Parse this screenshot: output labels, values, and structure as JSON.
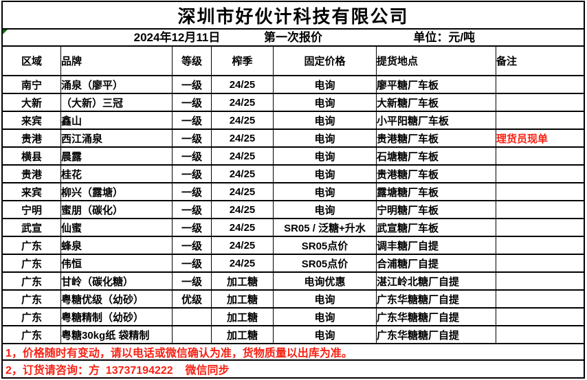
{
  "company": {
    "title": "深圳市好伙计科技有限公司"
  },
  "subheader": {
    "date": "2024年12月11日",
    "round": "第一次报价",
    "unit": "单位：元/吨"
  },
  "table": {
    "columns": [
      {
        "key": "region",
        "label": "区域"
      },
      {
        "key": "brand",
        "label": "品牌"
      },
      {
        "key": "grade",
        "label": "等级"
      },
      {
        "key": "season",
        "label": "榨季"
      },
      {
        "key": "price",
        "label": "固定价格"
      },
      {
        "key": "pickup",
        "label": "提货地点"
      },
      {
        "key": "note",
        "label": "备注"
      }
    ],
    "rows": [
      {
        "region": "南宁",
        "brand": "涌泉（廖平）",
        "grade": "一级",
        "season": "24/25",
        "price": "电询",
        "pickup": "廖平糖厂车板",
        "note": ""
      },
      {
        "region": "大新",
        "brand": "（大新）三冠",
        "grade": "一级",
        "season": "24/25",
        "price": "电询",
        "pickup": "大新糖厂车板",
        "note": ""
      },
      {
        "region": "来宾",
        "brand": "鑫山",
        "grade": "一级",
        "season": "24/25",
        "price": "电询",
        "pickup": "小平阳糖厂车板",
        "note": ""
      },
      {
        "region": "贵港",
        "brand": "西江涌泉",
        "grade": "一级",
        "season": "24/25",
        "price": "电询",
        "pickup": "贵港糖厂车板",
        "note": "理货员现单"
      },
      {
        "region": "横县",
        "brand": "晨露",
        "grade": "一级",
        "season": "24/25",
        "price": "电询",
        "pickup": "石塘糖厂车板",
        "note": ""
      },
      {
        "region": "贵港",
        "brand": "桂花",
        "grade": "一级",
        "season": "24/25",
        "price": "电询",
        "pickup": "贵港糖厂车板",
        "note": ""
      },
      {
        "region": "来宾",
        "brand": "柳兴（露塘）",
        "grade": "一级",
        "season": "24/25",
        "price": "电询",
        "pickup": "露塘糖厂车板",
        "note": ""
      },
      {
        "region": "宁明",
        "brand": "蜜朋（碳化）",
        "grade": "一级",
        "season": "24/25",
        "price": "电询",
        "pickup": "宁明糖厂车板",
        "note": ""
      },
      {
        "region": "武宣",
        "brand": "仙蜜",
        "grade": "一级",
        "season": "24/25",
        "price": "SR05 / 泛糖+升水",
        "pickup": "武宣糖厂车板",
        "note": ""
      },
      {
        "region": "广东",
        "brand": "蜂泉",
        "grade": "一级",
        "season": "24/25",
        "price": "SR05点价",
        "pickup": "调丰糖厂自提",
        "note": ""
      },
      {
        "region": "广东",
        "brand": "伟恒",
        "grade": "一级",
        "season": "24/25",
        "price": "SR05点价",
        "pickup": "合浦糖厂自提",
        "note": ""
      },
      {
        "region": "广东",
        "brand": "甘岭（碳化糖）",
        "grade": "一级",
        "season": "加工糖",
        "price": "电询优惠",
        "pickup": "湛江岭北糖厂自提",
        "note": ""
      },
      {
        "region": "广东",
        "brand": "粤糖优级（幼砂）",
        "grade": "优级",
        "season": "加工糖",
        "price": "电询",
        "pickup": "广东华糖糖厂自提",
        "note": ""
      },
      {
        "region": "广东",
        "brand": "粤糖精制（幼砂）",
        "grade": "",
        "season": "加工糖",
        "price": "电询",
        "pickup": "广东华糖糖厂自提",
        "note": ""
      },
      {
        "region": "广东",
        "brand": "粤糖30kg纸 袋精制",
        "grade": "",
        "season": "加工糖",
        "price": "电询",
        "pickup": "广东华糖糖厂自提",
        "note": ""
      }
    ]
  },
  "notices": {
    "line1": "1，价格随时有变动，请以电话或微信确认为准，货物质量以出库为准。",
    "line2": "2，订货请咨询：方  13737194222    微信同步"
  },
  "colors": {
    "highlight_red": "#f82114",
    "error_indicator_green": "#007500"
  }
}
